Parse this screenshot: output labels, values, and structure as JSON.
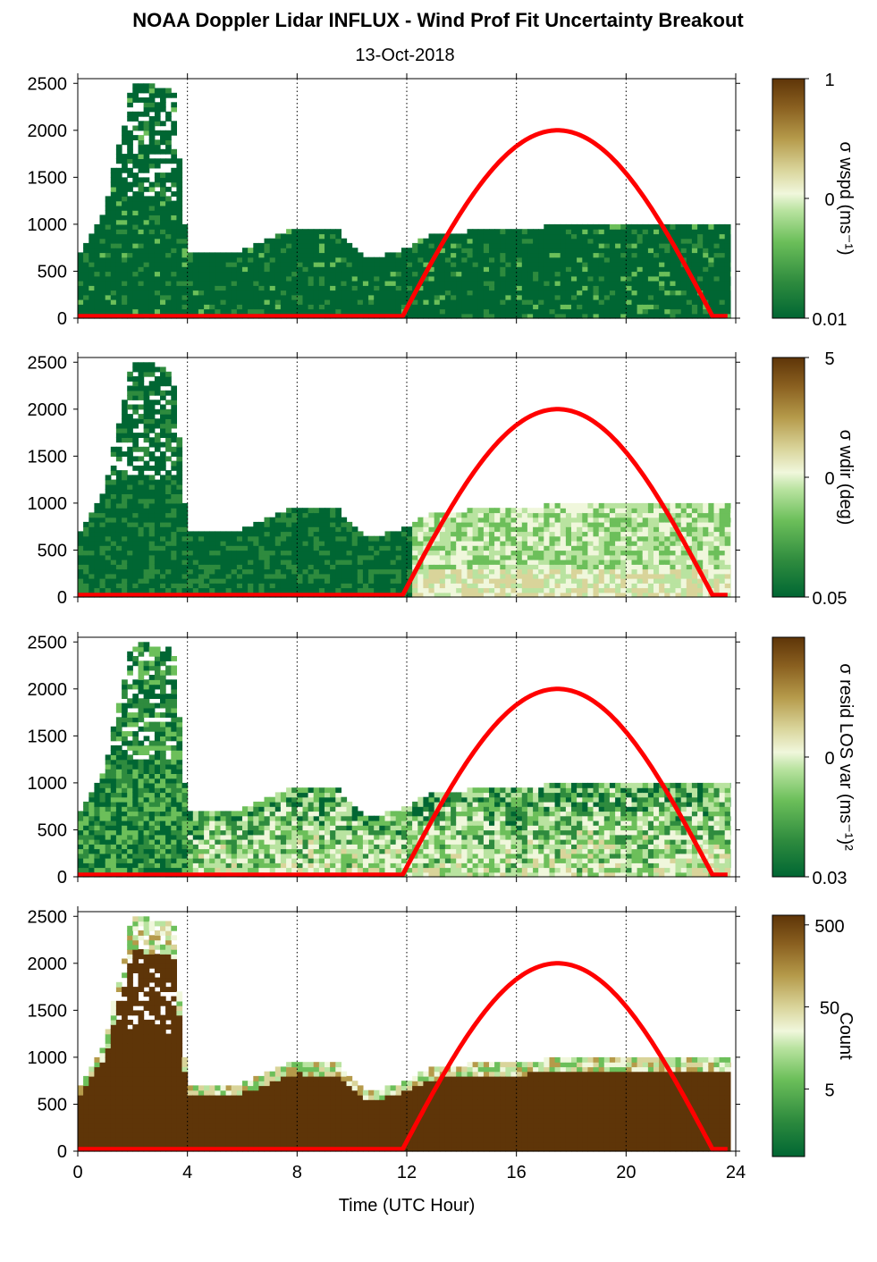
{
  "title": "NOAA Doppler Lidar INFLUX - Wind Prof Fit Uncertainty Breakout",
  "subtitle": "13-Oct-2018",
  "xlabel": "Time (UTC Hour)",
  "colors": {
    "sun_curve": "#ff0000",
    "cmap": [
      "#006633",
      "#2e8b3e",
      "#6cbf5a",
      "#b9e3a0",
      "#f0f7dc",
      "#d9d49a",
      "#b59a4a",
      "#8a6020",
      "#5e3508"
    ]
  },
  "chart_data": [
    {
      "type": "heatmap",
      "panel": "wspd",
      "ylim": [
        0,
        2550
      ],
      "xlim": [
        0,
        24
      ],
      "yticks": [
        "0",
        "500",
        "1000",
        "1500",
        "2000",
        "2500"
      ],
      "xticks": [
        "0",
        "4",
        "8",
        "12",
        "16",
        "20",
        "24"
      ],
      "colorbar": {
        "label": "σ wspd (ms⁻¹)",
        "ticks": [
          "1",
          "0",
          "0.01"
        ],
        "scale": "log"
      },
      "top_height_profile": [
        {
          "t": 0,
          "h": 650
        },
        {
          "t": 1,
          "h": 1150
        },
        {
          "t": 2,
          "h": 2500
        },
        {
          "t": 3.5,
          "h": 2400
        },
        {
          "t": 4,
          "h": 650
        },
        {
          "t": 6,
          "h": 700
        },
        {
          "t": 8,
          "h": 950
        },
        {
          "t": 9.5,
          "h": 900
        },
        {
          "t": 10.5,
          "h": 600
        },
        {
          "t": 11.8,
          "h": 700
        },
        {
          "t": 13,
          "h": 880
        },
        {
          "t": 17,
          "h": 950
        },
        {
          "t": 23.8,
          "h": 980
        }
      ],
      "dominant_level": "low",
      "sun_elevation_peak": {
        "t": 17.5,
        "h": 2000
      }
    },
    {
      "type": "heatmap",
      "panel": "wdir",
      "ylim": [
        0,
        2550
      ],
      "xlim": [
        0,
        24
      ],
      "yticks": [
        "0",
        "500",
        "1000",
        "1500",
        "2000",
        "2500"
      ],
      "xticks": [
        "0",
        "4",
        "8",
        "12",
        "16",
        "20",
        "24"
      ],
      "colorbar": {
        "label": "σ wdir (deg)",
        "ticks": [
          "5",
          "0",
          "0.05"
        ],
        "scale": "log"
      },
      "dominant_level": "mixed"
    },
    {
      "type": "heatmap",
      "panel": "resid",
      "ylim": [
        0,
        2550
      ],
      "xlim": [
        0,
        24
      ],
      "yticks": [
        "0",
        "500",
        "1000",
        "1500",
        "2000",
        "2500"
      ],
      "xticks": [
        "0",
        "4",
        "8",
        "12",
        "16",
        "20",
        "24"
      ],
      "colorbar": {
        "label": "σ resid LOS var (ms⁻¹)²",
        "ticks": [
          "0",
          "0.03"
        ],
        "scale": "log"
      },
      "dominant_level": "mid"
    },
    {
      "type": "heatmap",
      "panel": "count",
      "ylim": [
        0,
        2550
      ],
      "xlim": [
        0,
        24
      ],
      "yticks": [
        "0",
        "500",
        "1000",
        "1500",
        "2000",
        "2500"
      ],
      "xticks": [
        "0",
        "4",
        "8",
        "12",
        "16",
        "20",
        "24"
      ],
      "colorbar": {
        "label": "Count",
        "ticks": [
          "500",
          "50",
          "5"
        ],
        "scale": "log"
      },
      "dominant_level": "high"
    }
  ]
}
